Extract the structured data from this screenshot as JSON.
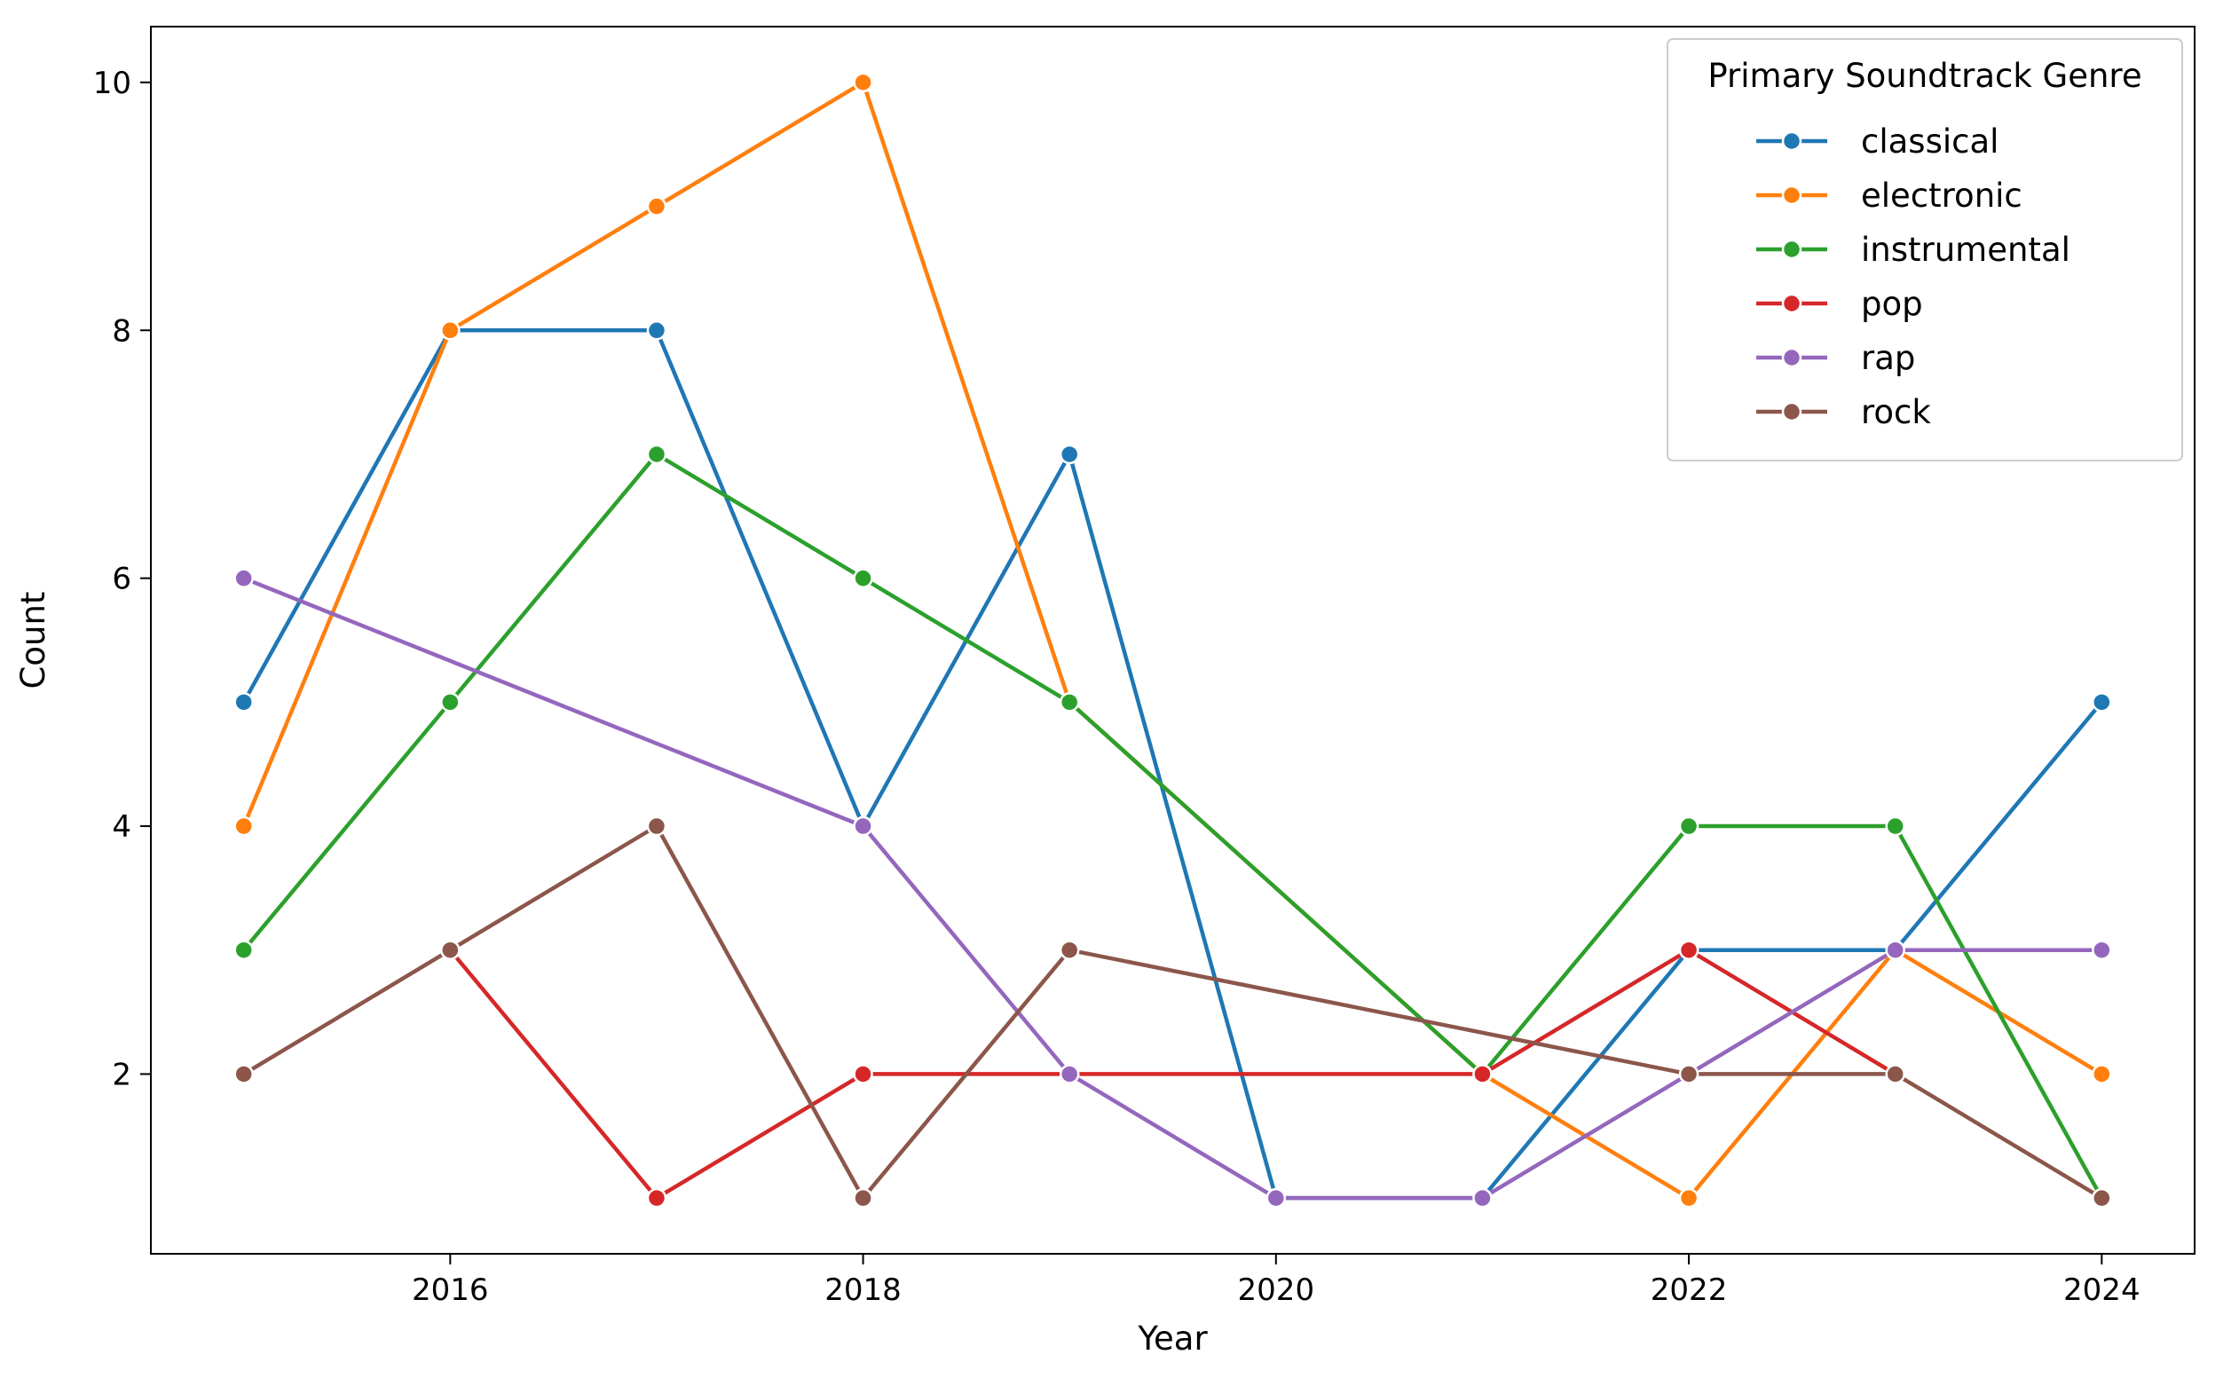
{
  "chart_data": {
    "type": "line",
    "title": "",
    "xlabel": "Year",
    "ylabel": "Count",
    "xlim": [
      2014.55,
      2024.45
    ],
    "ylim": [
      0.55,
      10.45
    ],
    "x_ticks": [
      2016,
      2018,
      2020,
      2022,
      2024
    ],
    "y_ticks": [
      2,
      4,
      6,
      8,
      10
    ],
    "grid": false,
    "legend": {
      "title": "Primary Soundtrack Genre",
      "placement": "top-right"
    },
    "series": [
      {
        "name": "classical",
        "color": "#1f77b4",
        "points": [
          [
            2015,
            5
          ],
          [
            2016,
            8
          ],
          [
            2017,
            8
          ],
          [
            2018,
            4
          ],
          [
            2019,
            7
          ],
          [
            2020,
            1
          ],
          [
            2021,
            1
          ],
          [
            2022,
            3
          ],
          [
            2023,
            3
          ],
          [
            2024,
            5
          ]
        ]
      },
      {
        "name": "electronic",
        "color": "#ff7f0e",
        "points": [
          [
            2015,
            4
          ],
          [
            2016,
            8
          ],
          [
            2017,
            9
          ],
          [
            2018,
            10
          ],
          [
            2019,
            5
          ],
          [
            2021,
            2
          ],
          [
            2022,
            1
          ],
          [
            2023,
            3
          ],
          [
            2024,
            2
          ]
        ]
      },
      {
        "name": "instrumental",
        "color": "#2ca02c",
        "points": [
          [
            2015,
            3
          ],
          [
            2016,
            5
          ],
          [
            2017,
            7
          ],
          [
            2018,
            6
          ],
          [
            2019,
            5
          ],
          [
            2021,
            2
          ],
          [
            2022,
            4
          ],
          [
            2023,
            4
          ],
          [
            2024,
            1
          ]
        ]
      },
      {
        "name": "pop",
        "color": "#d62728",
        "points": [
          [
            2016,
            3
          ],
          [
            2017,
            1
          ],
          [
            2018,
            2
          ],
          [
            2019,
            2
          ],
          [
            2021,
            2
          ],
          [
            2022,
            3
          ],
          [
            2023,
            2
          ]
        ]
      },
      {
        "name": "rap",
        "color": "#9467bd",
        "points": [
          [
            2015,
            6
          ],
          [
            2018,
            4
          ],
          [
            2019,
            2
          ],
          [
            2020,
            1
          ],
          [
            2021,
            1
          ],
          [
            2022,
            2
          ],
          [
            2023,
            3
          ],
          [
            2024,
            3
          ]
        ]
      },
      {
        "name": "rock",
        "color": "#8c564b",
        "points": [
          [
            2015,
            2
          ],
          [
            2016,
            3
          ],
          [
            2017,
            4
          ],
          [
            2018,
            1
          ],
          [
            2019,
            3
          ],
          [
            2022,
            2
          ],
          [
            2023,
            2
          ],
          [
            2024,
            1
          ]
        ]
      }
    ]
  }
}
